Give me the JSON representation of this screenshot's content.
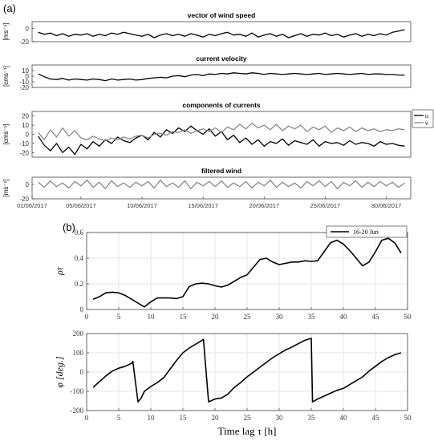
{
  "panel_labels": {
    "a": "(a)",
    "b": "(b)"
  },
  "chart_data": [
    {
      "type": "line",
      "title": "vector of wind speed",
      "ylabel": "[ms⁻¹]",
      "ylim": [
        -20,
        10
      ],
      "yticks": [
        -20,
        0
      ],
      "xlim": [
        0,
        31
      ],
      "line_color": "#000000",
      "x": [
        0.5,
        1,
        1.5,
        2,
        2.5,
        3,
        3.5,
        4,
        4.5,
        5,
        5.5,
        6,
        6.5,
        7,
        7.5,
        8,
        8.5,
        9,
        9.5,
        10,
        10.5,
        11,
        11.5,
        12,
        12.5,
        13,
        13.5,
        14,
        14.5,
        15,
        15.5,
        16,
        16.5,
        17,
        17.5,
        18,
        18.5,
        19,
        19.5,
        20,
        20.5,
        21,
        21.5,
        22,
        22.5,
        23,
        23.5,
        24,
        24.5,
        25,
        25.5,
        26,
        26.5,
        27,
        27.5,
        28,
        28.5,
        29,
        29.5,
        30,
        30.5
      ],
      "series": [
        {
          "values": [
            -6,
            -9,
            -7,
            -11,
            -8,
            -12,
            -9,
            -10,
            -8,
            -12,
            -9,
            -11,
            -7,
            -9,
            -6,
            -8,
            -10,
            -12,
            -9,
            -14,
            -10,
            -8,
            -11,
            -9,
            -12,
            -8,
            -10,
            -13,
            -9,
            -11,
            -8,
            -6,
            -10,
            -9,
            -12,
            -7,
            -13,
            -10,
            -8,
            -12,
            -9,
            -14,
            -11,
            -8,
            -12,
            -9,
            -10,
            -7,
            -11,
            -9,
            -13,
            -10,
            -8,
            -12,
            -9,
            -11,
            -8,
            -10,
            -6,
            -4,
            -2
          ]
        }
      ]
    },
    {
      "type": "line",
      "title": "current velocity",
      "ylabel": "[cms⁻¹]",
      "ylim": [
        -20,
        20
      ],
      "yticks": [
        -20,
        -10,
        0,
        10
      ],
      "xlim": [
        0,
        31
      ],
      "line_color": "#000000",
      "x": [
        0.5,
        1,
        1.5,
        2,
        2.5,
        3,
        3.5,
        4,
        4.5,
        5,
        5.5,
        6,
        6.5,
        7,
        7.5,
        8,
        8.5,
        9,
        9.5,
        10,
        10.5,
        11,
        11.5,
        12,
        12.5,
        13,
        13.5,
        14,
        14.5,
        15,
        15.5,
        16,
        16.5,
        17,
        17.5,
        18,
        18.5,
        19,
        19.5,
        20,
        20.5,
        21,
        21.5,
        22,
        22.5,
        23,
        23.5,
        24,
        24.5,
        25,
        25.5,
        26,
        26.5,
        27,
        27.5,
        28,
        28.5,
        29,
        29.5,
        30,
        30.5
      ],
      "series": [
        {
          "values": [
            4,
            -1,
            -5,
            -6,
            -4,
            -7,
            -5,
            -6,
            -7,
            -5,
            -6,
            -8,
            -5,
            -7,
            -6,
            -5,
            -7,
            -6,
            -4,
            -3,
            -2,
            -3,
            0,
            1,
            -1,
            2,
            3,
            1,
            4,
            3,
            5,
            4,
            6,
            5,
            4,
            6,
            5,
            3,
            5,
            4,
            3,
            4,
            5,
            4,
            3,
            4,
            5,
            3,
            4,
            5,
            4,
            3,
            4,
            5,
            3,
            4,
            4,
            3,
            3,
            2,
            2
          ]
        }
      ]
    },
    {
      "type": "line",
      "title": "components of currents",
      "ylabel": "[cms⁻¹]",
      "ylim": [
        -25,
        25
      ],
      "yticks": [
        -20,
        -10,
        0,
        10,
        20
      ],
      "xlim": [
        0,
        31
      ],
      "legend": {
        "position": "right",
        "entries": [
          "u",
          "v"
        ]
      },
      "x": [
        0.5,
        1,
        1.5,
        2,
        2.5,
        3,
        3.5,
        4,
        4.5,
        5,
        5.5,
        6,
        6.5,
        7,
        7.5,
        8,
        8.5,
        9,
        9.5,
        10,
        10.5,
        11,
        11.5,
        12,
        12.5,
        13,
        13.5,
        14,
        14.5,
        15,
        15.5,
        16,
        16.5,
        17,
        17.5,
        18,
        18.5,
        19,
        19.5,
        20,
        20.5,
        21,
        21.5,
        22,
        22.5,
        23,
        23.5,
        24,
        24.5,
        25,
        25.5,
        26,
        26.5,
        27,
        27.5,
        28,
        28.5,
        29,
        29.5,
        30,
        30.5
      ],
      "series": [
        {
          "name": "u",
          "color": "#000000",
          "values": [
            -2,
            -12,
            -18,
            -10,
            -20,
            -14,
            -22,
            -11,
            -16,
            -8,
            -13,
            -6,
            -10,
            -3,
            -7,
            -9,
            -4,
            -1,
            -6,
            2,
            -3,
            5,
            1,
            7,
            3,
            9,
            4,
            0,
            6,
            -2,
            3,
            -6,
            -1,
            -9,
            -4,
            -11,
            -6,
            -13,
            -8,
            -10,
            -5,
            -12,
            -7,
            -9,
            -11,
            -6,
            -13,
            -8,
            -10,
            -9,
            -12,
            -7,
            -11,
            -9,
            -10,
            -13,
            -8,
            -11,
            -10,
            -12,
            -13
          ]
        },
        {
          "name": "v",
          "color": "#888888",
          "values": [
            2,
            -6,
            5,
            -3,
            7,
            -2,
            4,
            -4,
            -6,
            -2,
            -5,
            -7,
            -4,
            -6,
            -3,
            -5,
            -2,
            -1,
            -4,
            0,
            1,
            -1,
            3,
            2,
            5,
            1,
            4,
            6,
            3,
            7,
            2,
            8,
            5,
            11,
            6,
            12,
            7,
            10,
            5,
            11,
            4,
            9,
            6,
            10,
            3,
            8,
            5,
            9,
            2,
            7,
            4,
            8,
            3,
            7,
            4,
            6,
            3,
            5,
            4,
            6,
            5
          ]
        }
      ]
    },
    {
      "type": "line",
      "title": "filtered wind",
      "ylabel": "[ms⁻¹]",
      "ylim": [
        -20,
        10
      ],
      "yticks": [
        -20,
        0
      ],
      "xlim": [
        0,
        31
      ],
      "line_color": "#888888",
      "xticklabels": [
        "01/06/2017",
        "05/06/2017",
        "10/06/2017",
        "15/06/2017",
        "20/06/2017",
        "25/06/2017",
        "30/06/2017"
      ],
      "xtickpositions": [
        0,
        4,
        9,
        14,
        19,
        24,
        29
      ],
      "x": [
        0.5,
        1,
        1.5,
        2,
        2.5,
        3,
        3.5,
        4,
        4.5,
        5,
        5.5,
        6,
        6.5,
        7,
        7.5,
        8,
        8.5,
        9,
        9.5,
        10,
        10.5,
        11,
        11.5,
        12,
        12.5,
        13,
        13.5,
        14,
        14.5,
        15,
        15.5,
        16,
        16.5,
        17,
        17.5,
        18,
        18.5,
        19,
        19.5,
        20,
        20.5,
        21,
        21.5,
        22,
        22.5,
        23,
        23.5,
        24,
        24.5,
        25,
        25.5,
        26,
        26.5,
        27,
        27.5,
        28,
        28.5,
        29,
        29.5,
        30,
        30.5
      ],
      "series": [
        {
          "values": [
            3,
            -4,
            5,
            -3,
            2,
            -5,
            4,
            -2,
            6,
            -4,
            3,
            -6,
            5,
            -3,
            2,
            -4,
            3,
            -2,
            4,
            -5,
            6,
            -3,
            2,
            -4,
            5,
            -6,
            3,
            -2,
            4,
            -3,
            5,
            -4,
            2,
            -3,
            4,
            -5,
            3,
            -2,
            6,
            -4,
            3,
            -3,
            2,
            -5,
            4,
            -2,
            5,
            -3,
            4,
            -6,
            3,
            -2,
            5,
            -4,
            3,
            -3,
            4,
            -2,
            3,
            -4,
            2
          ]
        }
      ]
    },
    {
      "type": "line",
      "ylabel": "ρτ",
      "ylim": [
        0,
        0.6
      ],
      "yticks": [
        0,
        0.2,
        0.4,
        0.6
      ],
      "xlim": [
        0,
        50
      ],
      "xticks": [
        0,
        5,
        10,
        15,
        20,
        25,
        30,
        35,
        40,
        45,
        50
      ],
      "grid": true,
      "legend": {
        "position": "top-right",
        "entries": [
          "16-20 Jun"
        ]
      },
      "x": [
        1,
        2,
        3,
        4,
        5,
        6,
        7,
        8,
        9,
        10,
        11,
        12,
        13,
        14,
        15,
        16,
        17,
        18,
        19,
        20,
        21,
        22,
        23,
        24,
        25,
        26,
        27,
        28,
        29,
        30,
        31,
        32,
        33,
        34,
        35,
        36,
        37,
        38,
        39,
        40,
        41,
        42,
        43,
        44,
        45,
        46,
        47,
        48,
        49
      ],
      "series": [
        {
          "name": "16-20 Jun",
          "color": "#000000",
          "values": [
            0.08,
            0.1,
            0.13,
            0.135,
            0.13,
            0.11,
            0.08,
            0.05,
            0.02,
            0.06,
            0.09,
            0.09,
            0.09,
            0.085,
            0.1,
            0.18,
            0.2,
            0.205,
            0.2,
            0.185,
            0.175,
            0.19,
            0.22,
            0.25,
            0.27,
            0.33,
            0.39,
            0.4,
            0.37,
            0.35,
            0.36,
            0.37,
            0.37,
            0.38,
            0.375,
            0.38,
            0.45,
            0.52,
            0.54,
            0.51,
            0.46,
            0.4,
            0.34,
            0.37,
            0.45,
            0.54,
            0.555,
            0.52,
            0.44
          ]
        }
      ]
    },
    {
      "type": "line",
      "ylabel": "φ [deg.]",
      "xlabel": "Time lag τ [h]",
      "ylim": [
        -200,
        200
      ],
      "yticks": [
        -200,
        -100,
        0,
        100,
        200
      ],
      "xlim": [
        0,
        50
      ],
      "xticks": [
        0,
        5,
        10,
        15,
        20,
        25,
        30,
        35,
        40,
        45,
        50
      ],
      "grid": true,
      "x": [
        1,
        2,
        3,
        4,
        5,
        6,
        7,
        7.2,
        8,
        8.5,
        9,
        10,
        11,
        12,
        13,
        14,
        15,
        16,
        17,
        18,
        18.2,
        19,
        20,
        21,
        22,
        23,
        24,
        25,
        26,
        27,
        28,
        29,
        30,
        31,
        32,
        33,
        34,
        35,
        35.2,
        36,
        37,
        38,
        39,
        40,
        41,
        42,
        43,
        44,
        45,
        46,
        47,
        48,
        49
      ],
      "series": [
        {
          "color": "#000000",
          "values": [
            -80,
            -50,
            -20,
            5,
            20,
            30,
            45,
            55,
            -155,
            -135,
            -100,
            -75,
            -55,
            -30,
            15,
            60,
            100,
            125,
            145,
            165,
            170,
            -155,
            -140,
            -135,
            -115,
            -80,
            -55,
            -25,
            0,
            25,
            50,
            75,
            95,
            115,
            130,
            148,
            165,
            175,
            -155,
            -140,
            -125,
            -110,
            -95,
            -85,
            -65,
            -45,
            -25,
            5,
            30,
            55,
            75,
            90,
            100
          ]
        }
      ]
    }
  ]
}
